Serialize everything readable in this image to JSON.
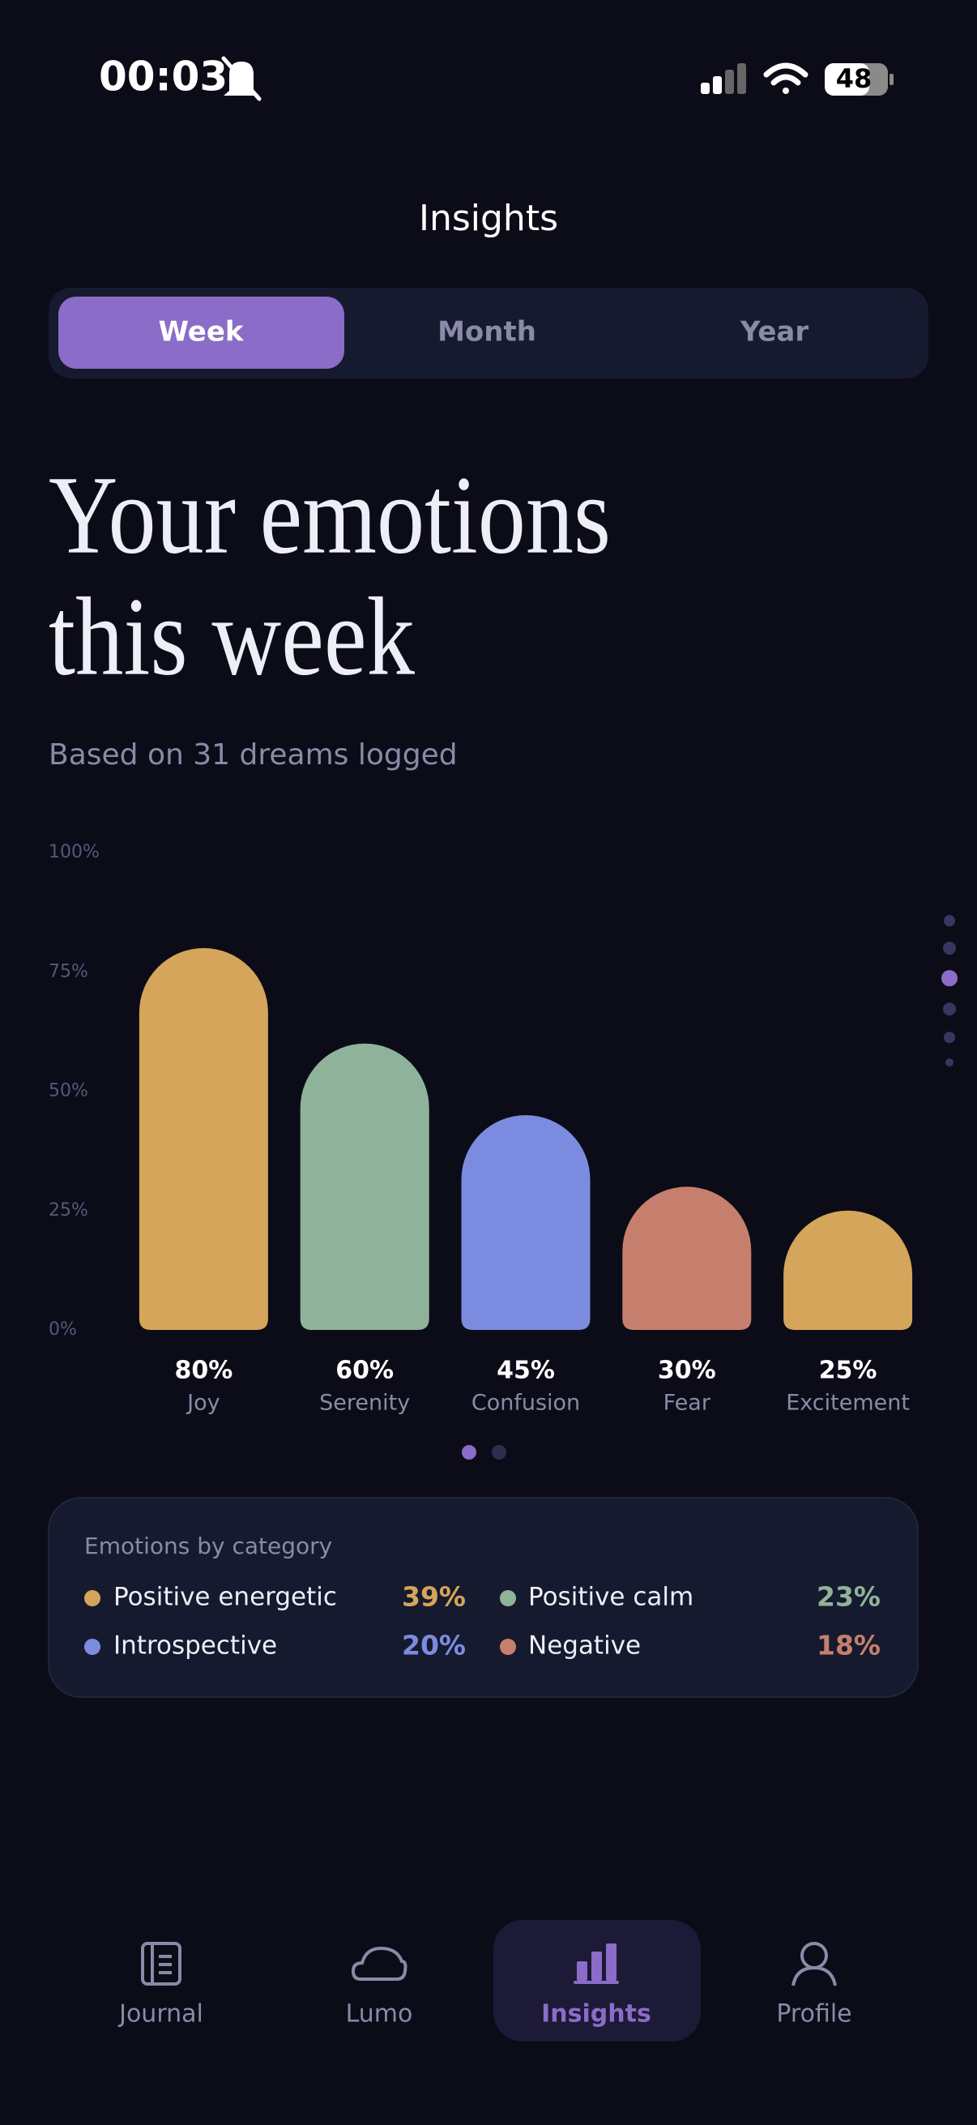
{
  "status_bar": {
    "time": "00:03",
    "battery": "48"
  },
  "header": {
    "title": "Insights"
  },
  "tabs": [
    "Week",
    "Month",
    "Year"
  ],
  "heading": {
    "lines": [
      "Your emotions",
      "this week"
    ],
    "subtitle": "Based on 31 dreams logged"
  },
  "chart_data": {
    "type": "bar",
    "categories": [
      "Joy",
      "Serenity",
      "Confusion",
      "Fear",
      "Excitement"
    ],
    "values": [
      80,
      60,
      45,
      30,
      25
    ],
    "value_labels": [
      "80%",
      "60%",
      "45%",
      "30%",
      "25%"
    ],
    "colors": [
      "#d4a55a",
      "#8fb39a",
      "#7b8ce0",
      "#c77f6d",
      "#d4a55a"
    ],
    "ylim": [
      0,
      100
    ],
    "yticks": [
      {
        "value": 0,
        "label": "0%"
      },
      {
        "value": 25,
        "label": "25%"
      },
      {
        "value": 50,
        "label": "50%"
      },
      {
        "value": 75,
        "label": "75%"
      },
      {
        "value": 100,
        "label": "100%"
      }
    ],
    "grid": false
  },
  "category_card": {
    "title": "Emotions by category",
    "items": [
      {
        "name": "Positive energetic",
        "value": "39%",
        "color": "#d4a55a"
      },
      {
        "name": "Positive calm",
        "value": "23%",
        "color": "#8fb39a"
      },
      {
        "name": "Introspective",
        "value": "20%",
        "color": "#7b8ce0"
      },
      {
        "name": "Negative",
        "value": "18%",
        "color": "#c77f6d"
      }
    ]
  },
  "nav": [
    "Journal",
    "Lumo",
    "Insights",
    "Profile"
  ]
}
